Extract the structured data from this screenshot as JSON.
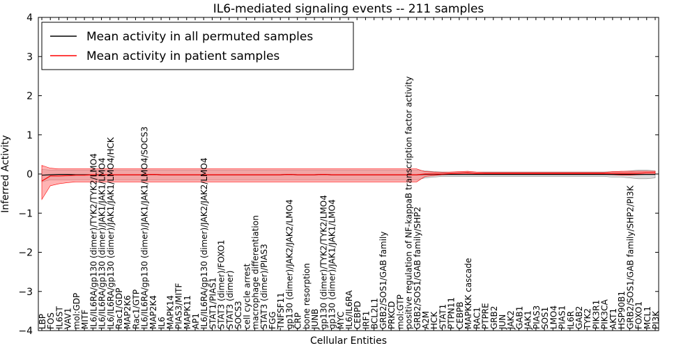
{
  "chart_data": {
    "type": "line",
    "title": "IL6-mediated signaling events -- 211 samples",
    "xlabel": "Cellular Entities",
    "ylabel": "Inferred Activity",
    "ylim": [
      -4,
      4
    ],
    "yticks": [
      -4,
      -3,
      -2,
      -1,
      0,
      1,
      2,
      3,
      4
    ],
    "legend_position": "top-left",
    "colors": {
      "permuted": "#000000",
      "patient": "#ff0000",
      "patient_band": "#ff8080",
      "permuted_band": "#b0b0b0"
    },
    "categories": [
      "LBP",
      "FOS",
      "IL6ST",
      "VAV1",
      "mol:GDP",
      "MITF",
      "IL6/IL6RA/gp130 (dimer)/TYK2/TYK2/LMO4",
      "IL6/IL6RA/gp130 (dimer)/JAK1/JAK1/LMO4",
      "IL6/IL6RA/gp130 (dimer)/JAK1/JAK1/LMO4/HCK",
      "Rac1/GDP",
      "MAP2K6",
      "Rac1/GTP",
      "IL6/IL6RA/gp130 (dimer)/JAK1/JAK1/LMO4/SOCS3",
      "MAP2K4",
      "IL6",
      "MAPK14",
      "PIAS3/MITF",
      "MAPK11",
      "AP1",
      "IL6/IL6RA/gp130 (dimer)/JAK2/JAK2/LMO4",
      "STAT1/PIAS1",
      "STAT3 (dimer)/FOXO1",
      "STAT3 (dimer)",
      "SOCS3",
      "cell cycle arrest",
      "macrophage differentiation",
      "STAT3 (dimer)/PIAS3",
      "FGG",
      "TNFSF11",
      "gp130 (dimer)/JAK2/JAK2/LMO4",
      "CRP",
      "bone resorption",
      "JUNB",
      "gp130 (dimer)/TYK2/TYK2/LMO4",
      "gp130 (dimer)/JAK1/JAK1/LMO4",
      "MYC",
      "IL6/IL6RA",
      "CEBPD",
      "IRF1",
      "BCL2L1",
      "GRB2/SOS1/GAB family",
      "PRKCD",
      "mol:GTP",
      "positive regulation of NF-kappaB transcription factor activity",
      "GRB2/SOS1/GAB family/SHP2",
      "A2M",
      "HCK",
      "STAT1",
      "PTPN11",
      "CEBPB",
      "MAPKKK cascade",
      "RAC1",
      "PTPRE",
      "GRB2",
      "JUN",
      "JAK2",
      "GAB1",
      "JAK1",
      "PIAS3",
      "SOS1",
      "LMO4",
      "PIAS1",
      "IL6R",
      "GAB2",
      "TYK2",
      "PIK3R1",
      "PIK3CA",
      "AKT1",
      "HSP90B1",
      "GRB2/SOS1/GAB family/SHP2/PI3K",
      "FOXO1",
      "MCL1",
      "PI3K"
    ],
    "series": [
      {
        "name": "Mean activity in all permuted samples",
        "values": [
          -0.03,
          -0.02,
          -0.01,
          -0.01,
          -0.02,
          -0.02,
          -0.02,
          -0.02,
          -0.02,
          -0.02,
          -0.02,
          -0.02,
          -0.02,
          -0.01,
          -0.02,
          -0.02,
          -0.02,
          -0.02,
          -0.02,
          -0.02,
          -0.02,
          -0.02,
          -0.02,
          -0.02,
          -0.02,
          -0.02,
          -0.02,
          -0.02,
          -0.02,
          -0.01,
          -0.02,
          -0.02,
          -0.02,
          -0.01,
          -0.02,
          -0.02,
          -0.02,
          -0.02,
          -0.02,
          -0.02,
          -0.02,
          -0.02,
          -0.02,
          -0.02,
          -0.02,
          -0.01,
          -0.01,
          -0.01,
          -0.01,
          -0.01,
          -0.01,
          -0.01,
          -0.01,
          -0.01,
          -0.01,
          -0.01,
          -0.01,
          -0.01,
          -0.01,
          -0.01,
          -0.01,
          -0.01,
          -0.01,
          -0.01,
          -0.01,
          -0.01,
          -0.01,
          -0.01,
          -0.01,
          -0.01,
          -0.01,
          -0.01,
          -0.01
        ],
        "band_low": [
          -0.2,
          -0.15,
          -0.15,
          -0.15,
          -0.15,
          -0.15,
          -0.15,
          -0.15,
          -0.15,
          -0.15,
          -0.15,
          -0.15,
          -0.15,
          -0.15,
          -0.15,
          -0.15,
          -0.15,
          -0.15,
          -0.15,
          -0.15,
          -0.15,
          -0.15,
          -0.15,
          -0.15,
          -0.15,
          -0.15,
          -0.15,
          -0.15,
          -0.15,
          -0.15,
          -0.15,
          -0.15,
          -0.15,
          -0.15,
          -0.15,
          -0.15,
          -0.15,
          -0.15,
          -0.15,
          -0.15,
          -0.15,
          -0.15,
          -0.15,
          -0.15,
          -0.15,
          -0.1,
          -0.08,
          -0.06,
          -0.06,
          -0.06,
          -0.06,
          -0.06,
          -0.06,
          -0.06,
          -0.06,
          -0.06,
          -0.06,
          -0.06,
          -0.06,
          -0.06,
          -0.06,
          -0.06,
          -0.06,
          -0.06,
          -0.06,
          -0.06,
          -0.06,
          -0.08,
          -0.08,
          -0.1,
          -0.12,
          -0.12,
          -0.1
        ],
        "band_high": [
          0.12,
          0.1,
          0.1,
          0.1,
          0.1,
          0.1,
          0.1,
          0.1,
          0.1,
          0.1,
          0.1,
          0.1,
          0.1,
          0.1,
          0.1,
          0.1,
          0.1,
          0.1,
          0.1,
          0.1,
          0.1,
          0.1,
          0.1,
          0.1,
          0.1,
          0.1,
          0.1,
          0.1,
          0.1,
          0.1,
          0.1,
          0.1,
          0.1,
          0.1,
          0.1,
          0.1,
          0.1,
          0.1,
          0.1,
          0.1,
          0.1,
          0.1,
          0.1,
          0.1,
          0.1,
          0.08,
          0.06,
          0.05,
          0.05,
          0.05,
          0.05,
          0.05,
          0.05,
          0.05,
          0.05,
          0.05,
          0.05,
          0.05,
          0.05,
          0.05,
          0.05,
          0.05,
          0.05,
          0.05,
          0.05,
          0.05,
          0.05,
          0.06,
          0.06,
          0.08,
          0.1,
          0.1,
          0.08
        ]
      },
      {
        "name": "Mean activity in patient samples",
        "values": [
          -0.18,
          -0.05,
          -0.05,
          -0.04,
          -0.03,
          -0.03,
          -0.02,
          -0.02,
          -0.02,
          -0.02,
          -0.02,
          -0.02,
          -0.02,
          -0.01,
          -0.02,
          -0.02,
          -0.02,
          -0.02,
          -0.02,
          -0.02,
          -0.02,
          -0.02,
          -0.02,
          -0.02,
          -0.02,
          -0.02,
          -0.02,
          -0.02,
          -0.02,
          -0.01,
          -0.02,
          -0.02,
          -0.02,
          -0.01,
          -0.02,
          -0.02,
          -0.02,
          -0.02,
          -0.02,
          -0.02,
          -0.02,
          -0.02,
          -0.02,
          -0.02,
          -0.02,
          0.0,
          0.0,
          0.0,
          0.01,
          0.02,
          0.03,
          0.01,
          0.01,
          0.01,
          0.01,
          0.01,
          0.01,
          0.01,
          0.01,
          0.01,
          0.01,
          0.01,
          0.01,
          0.01,
          0.01,
          0.01,
          0.01,
          0.02,
          0.02,
          0.02,
          0.02,
          0.03,
          0.03
        ],
        "band_low": [
          -0.65,
          -0.3,
          -0.25,
          -0.22,
          -0.2,
          -0.2,
          -0.2,
          -0.2,
          -0.2,
          -0.2,
          -0.2,
          -0.2,
          -0.2,
          -0.2,
          -0.2,
          -0.2,
          -0.2,
          -0.2,
          -0.2,
          -0.2,
          -0.2,
          -0.2,
          -0.2,
          -0.2,
          -0.2,
          -0.2,
          -0.2,
          -0.2,
          -0.2,
          -0.2,
          -0.2,
          -0.2,
          -0.2,
          -0.2,
          -0.2,
          -0.2,
          -0.2,
          -0.2,
          -0.2,
          -0.2,
          -0.2,
          -0.2,
          -0.2,
          -0.2,
          -0.2,
          -0.06,
          -0.04,
          -0.02,
          -0.01,
          -0.01,
          0.0,
          -0.01,
          -0.01,
          -0.01,
          -0.01,
          -0.01,
          -0.01,
          -0.01,
          -0.01,
          -0.01,
          -0.01,
          -0.01,
          -0.01,
          -0.01,
          -0.01,
          -0.01,
          -0.01,
          -0.02,
          -0.03,
          -0.03,
          -0.02,
          -0.01,
          -0.01
        ],
        "band_high": [
          0.22,
          0.15,
          0.13,
          0.13,
          0.13,
          0.13,
          0.13,
          0.13,
          0.13,
          0.13,
          0.13,
          0.13,
          0.13,
          0.13,
          0.13,
          0.13,
          0.13,
          0.13,
          0.13,
          0.13,
          0.13,
          0.13,
          0.13,
          0.13,
          0.13,
          0.13,
          0.13,
          0.13,
          0.13,
          0.13,
          0.13,
          0.13,
          0.13,
          0.13,
          0.13,
          0.13,
          0.13,
          0.13,
          0.13,
          0.13,
          0.13,
          0.13,
          0.13,
          0.13,
          0.13,
          0.06,
          0.05,
          0.04,
          0.05,
          0.06,
          0.07,
          0.05,
          0.04,
          0.04,
          0.04,
          0.04,
          0.04,
          0.04,
          0.04,
          0.04,
          0.04,
          0.04,
          0.04,
          0.04,
          0.04,
          0.04,
          0.04,
          0.06,
          0.07,
          0.07,
          0.07,
          0.07,
          0.07
        ]
      }
    ]
  }
}
